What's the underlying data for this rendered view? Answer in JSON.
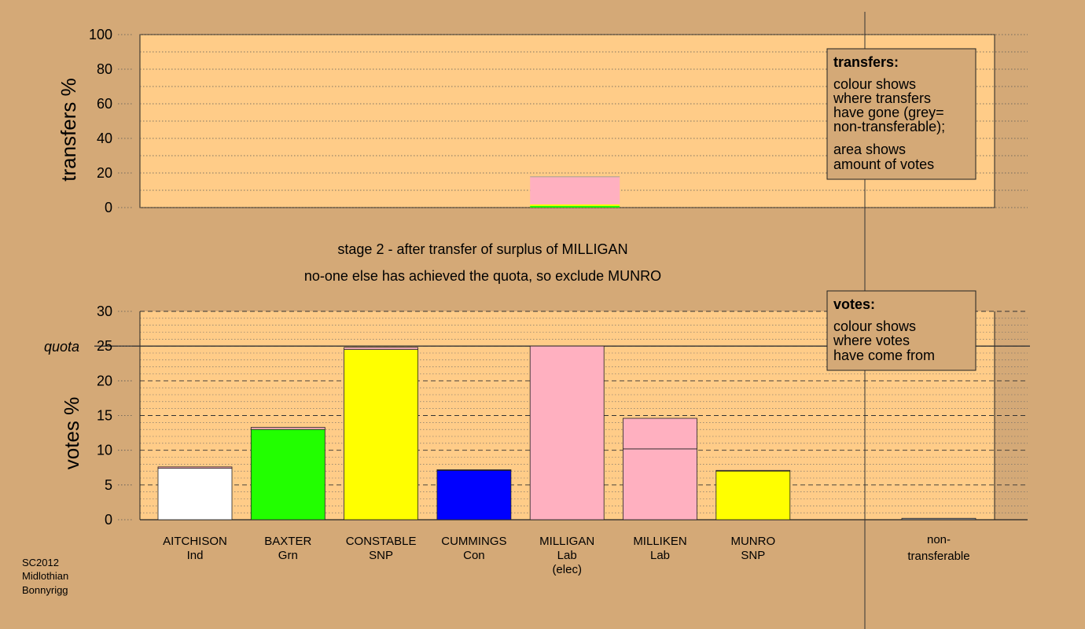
{
  "chart_data": [
    {
      "type": "bar",
      "name": "transfers",
      "ylabel": "transfers %",
      "ylim": [
        0,
        100
      ],
      "yticks": [
        0,
        20,
        40,
        60,
        80,
        100
      ],
      "categories": [
        "AITCHISON",
        "BAXTER",
        "CONSTABLE",
        "CUMMINGS",
        "MILLIGAN",
        "MILLIKEN",
        "MUNRO"
      ],
      "bars": [
        {
          "category": "MILLIGAN",
          "segments": [
            {
              "from": "BAXTER",
              "value": 1.0,
              "color": "#22FF00"
            },
            {
              "from": "CONSTABLE",
              "value": 0.8,
              "color": "#FFFF00"
            },
            {
              "from": "MILLIKEN",
              "value": 15.8,
              "color": "#FFB0C0"
            },
            {
              "from": "non-transferable",
              "value": 0.4,
              "color": "#999999"
            }
          ]
        }
      ],
      "legend": {
        "title": "transfers:",
        "lines": [
          "colour shows",
          "where transfers",
          "have gone (grey=",
          "non-transferable);"
        ],
        "lines2": [
          "area shows",
          "amount of votes"
        ]
      }
    },
    {
      "type": "bar",
      "name": "votes",
      "ylabel": "votes %",
      "ylim": [
        0,
        30
      ],
      "yticks": [
        0,
        5,
        10,
        15,
        20,
        25,
        30
      ],
      "quota": 25,
      "quota_label": "quota",
      "candidates": [
        {
          "name": "AITCHISON",
          "party": "Ind",
          "color": "#FFFFFF",
          "segments": [
            {
              "value": 7.4,
              "color": "#FFFFFF"
            },
            {
              "value": 0.2,
              "color": "#FFB0C0"
            }
          ]
        },
        {
          "name": "BAXTER",
          "party": "Grn",
          "color": "#22FF00",
          "segments": [
            {
              "value": 13.0,
              "color": "#22FF00"
            },
            {
              "value": 0.3,
              "color": "#FFB0C0"
            }
          ]
        },
        {
          "name": "CONSTABLE",
          "party": "SNP",
          "color": "#FFFF00",
          "segments": [
            {
              "value": 24.5,
              "color": "#FFFF00"
            },
            {
              "value": 0.3,
              "color": "#FFB0C0"
            }
          ]
        },
        {
          "name": "CUMMINGS",
          "party": "Con",
          "color": "#0000FF",
          "segments": [
            {
              "value": 7.1,
              "color": "#0000FF"
            },
            {
              "value": 0.1,
              "color": "#FFB0C0"
            }
          ]
        },
        {
          "name": "MILLIGAN",
          "party": "Lab",
          "extra": "(elec)",
          "color": "#FFB0C0",
          "segments": [
            {
              "value": 25.0,
              "color": "#FFB0C0"
            }
          ]
        },
        {
          "name": "MILLIKEN",
          "party": "Lab",
          "color": "#FFB0C0",
          "segments": [
            {
              "value": 10.2,
              "color": "#FFB0C0"
            },
            {
              "value": 4.4,
              "color": "#FFB0C0"
            }
          ]
        },
        {
          "name": "MUNRO",
          "party": "SNP",
          "color": "#FFFF00",
          "segments": [
            {
              "value": 7.0,
              "color": "#FFFF00"
            },
            {
              "value": 0.1,
              "color": "#FFB0C0"
            }
          ]
        }
      ],
      "nontransferable": {
        "label1": "non-",
        "label2": "transferable",
        "value": 0.2
      },
      "legend": {
        "title": "votes:",
        "lines": [
          "colour shows",
          "where votes",
          "have come from"
        ]
      }
    }
  ],
  "stage": {
    "line1": "stage 2 - after transfer of surplus of MILLIGAN",
    "line2": "no-one else has achieved the quota, so exclude MUNRO"
  },
  "footer": {
    "line1": "SC2012",
    "line2": "Midlothian",
    "line3": "Bonnyrigg"
  },
  "colors": {
    "background": "#D4A977",
    "plot": "#FFCC88"
  }
}
